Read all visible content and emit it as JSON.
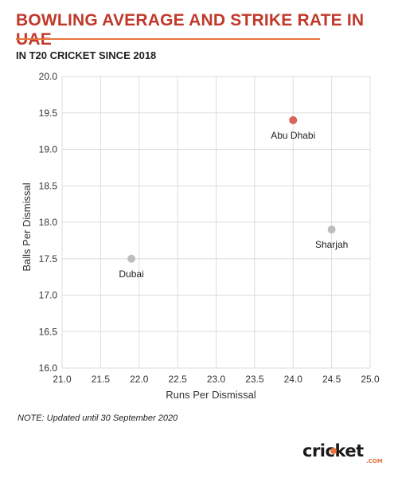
{
  "header": {
    "title": "BOWLING AVERAGE AND STRIKE RATE IN UAE",
    "subtitle": "IN T20 CRICKET SINCE 2018"
  },
  "note": "NOTE: Updated until 30 September 2020",
  "logo": {
    "text": "cricket",
    "sub": ".COM"
  },
  "colors": {
    "title": "#c0392b",
    "accent": "#e8733a",
    "highlight_point": "#d9625a",
    "default_point": "#bdbdbd",
    "grid": "#dddddd"
  },
  "chart_data": {
    "type": "scatter",
    "xlabel": "Runs Per Dismissal",
    "ylabel": "Balls Per Dismissal",
    "xlim": [
      21.0,
      25.0
    ],
    "ylim": [
      16.0,
      20.0
    ],
    "xticks": [
      21.0,
      21.5,
      22.0,
      22.5,
      23.0,
      23.5,
      24.0,
      24.5,
      25.0
    ],
    "yticks": [
      16.0,
      16.5,
      17.0,
      17.5,
      18.0,
      18.5,
      19.0,
      19.5,
      20.0
    ],
    "grid": true,
    "points": [
      {
        "label": "Abu Dhabi",
        "x": 24.0,
        "y": 19.4,
        "highlight": true
      },
      {
        "label": "Sharjah",
        "x": 24.5,
        "y": 17.9,
        "highlight": false
      },
      {
        "label": "Dubai",
        "x": 21.9,
        "y": 17.5,
        "highlight": false
      }
    ]
  }
}
